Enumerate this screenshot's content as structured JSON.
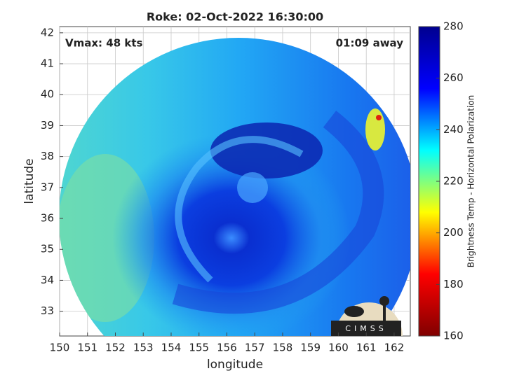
{
  "chart_data": {
    "type": "image",
    "title": "Roke: 02-Oct-2022 16:30:00",
    "annotations": [
      "Vmax: 48 kts",
      "01:09 away"
    ],
    "xlabel": "longitude",
    "ylabel": "latitude",
    "xlim": [
      150,
      162.58
    ],
    "ylim": [
      32.2,
      42.2
    ],
    "xticks": [
      150,
      151,
      152,
      153,
      154,
      155,
      156,
      157,
      158,
      159,
      160,
      161,
      162
    ],
    "yticks": [
      33,
      34,
      35,
      36,
      37,
      38,
      39,
      40,
      41,
      42
    ],
    "grid": true,
    "colorbar": {
      "label": "Brightness Temp - Horizontal Polarization",
      "colormap": "jet",
      "lim": [
        160,
        280
      ],
      "ticks": [
        160,
        180,
        200,
        220,
        240,
        260,
        280
      ]
    },
    "logo": "CIMSS"
  }
}
